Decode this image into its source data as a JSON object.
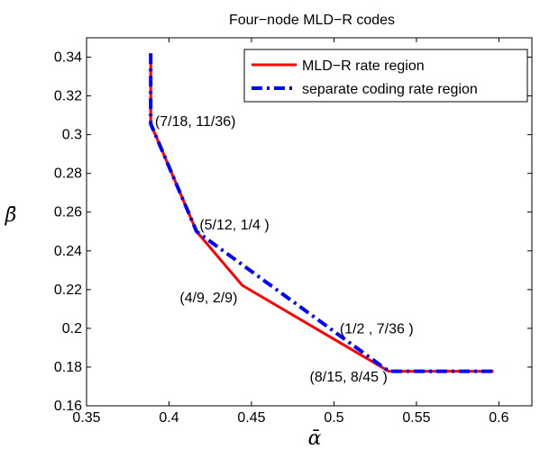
{
  "chart_data": {
    "type": "line",
    "title": "Four−node MLD−R codes",
    "xlabel": "ᾱ",
    "ylabel": "β̄",
    "xlim": [
      0.35,
      0.62
    ],
    "ylim": [
      0.16,
      0.35
    ],
    "x_ticks": [
      0.35,
      0.4,
      0.45,
      0.5,
      0.55,
      0.6
    ],
    "x_tick_labels": [
      "0.35",
      "0.4",
      "0.45",
      "0.5",
      "0.55",
      "0.6"
    ],
    "y_ticks": [
      0.16,
      0.18,
      0.2,
      0.22,
      0.24,
      0.26,
      0.28,
      0.3,
      0.32,
      0.34
    ],
    "y_tick_labels": [
      "0.16",
      "0.18",
      "0.2",
      "0.22",
      "0.24",
      "0.26",
      "0.28",
      "0.3",
      "0.32",
      "0.34"
    ],
    "grid": false,
    "legend_position": "top-right",
    "series": [
      {
        "name": "MLD−R rate region",
        "color": "#ff0000",
        "style": "solid",
        "x": [
          0.3889,
          0.3889,
          0.4167,
          0.4444,
          0.5,
          0.5333,
          0.5967
        ],
        "y": [
          0.342,
          0.3056,
          0.25,
          0.2222,
          0.1944,
          0.1778,
          0.1778
        ]
      },
      {
        "name": "separate coding rate region",
        "color": "#0000ff",
        "style": "dashdot",
        "x": [
          0.3889,
          0.3889,
          0.4167,
          0.5333,
          0.5967
        ],
        "y": [
          0.342,
          0.3056,
          0.25,
          0.1778,
          0.1778
        ]
      }
    ],
    "annotations": [
      {
        "text": "(7/18, 11/36)",
        "x": 0.3915,
        "y": 0.3045
      },
      {
        "text": "(5/12, 1/4  )",
        "x": 0.4185,
        "y": 0.251
      },
      {
        "text": "(4/9, 2/9)",
        "x": 0.4065,
        "y": 0.2135
      },
      {
        "text": "(1/2 , 7/36 )",
        "x": 0.5035,
        "y": 0.1975
      },
      {
        "text": "(8/15, 8/45 )",
        "x": 0.4853,
        "y": 0.1725
      }
    ]
  }
}
